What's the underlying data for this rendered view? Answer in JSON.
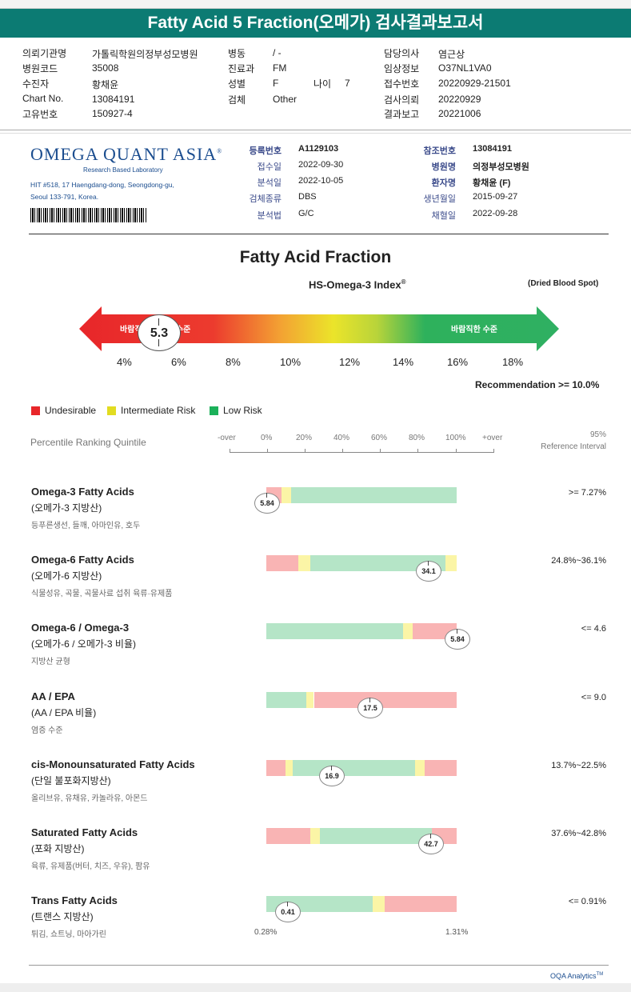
{
  "title": "Fatty Acid 5 Fraction(오메가) 검사결과보고서",
  "header": {
    "col1": [
      {
        "k": "의뢰기관명",
        "v": "가톨릭학원의정부성모병원"
      },
      {
        "k": "병원코드",
        "v": "35008"
      },
      {
        "k": "수진자",
        "v": "황채윤"
      },
      {
        "k": "Chart No.",
        "v": "13084191"
      },
      {
        "k": "고유번호",
        "v": "150927-4"
      }
    ],
    "col2": [
      {
        "k": "병동",
        "v": "/ -"
      },
      {
        "k": "진료과",
        "v": "FM"
      },
      {
        "k": "성별",
        "v": "F"
      },
      {
        "k": "검체",
        "v": "Other"
      }
    ],
    "age_label": "나이",
    "age_value": "7",
    "col3": [
      {
        "k": "담당의사",
        "v": "염근상"
      },
      {
        "k": "임상정보",
        "v": "O37NL1VA0"
      },
      {
        "k": "접수번호",
        "v": "20220929-21501"
      },
      {
        "k": "검사의뢰",
        "v": "20220929"
      },
      {
        "k": "결과보고",
        "v": "20221006"
      }
    ]
  },
  "lab": {
    "logo_main": "OMEGA QUANT ASIA",
    "logo_sub": "Research Based Laboratory",
    "address1": "HIT #518, 17 Haengdang-dong, Seongdong-gu,",
    "address2": "Seoul 133-791, Korea."
  },
  "info_left": [
    {
      "k": "등록번호",
      "v": "A1129103",
      "bold": true
    },
    {
      "k": "접수일",
      "v": "2022-09-30"
    },
    {
      "k": "분석일",
      "v": "2022-10-05"
    },
    {
      "k": "검체종류",
      "v": "DBS"
    },
    {
      "k": "분석법",
      "v": "G/C"
    }
  ],
  "info_right": [
    {
      "k": "참조번호",
      "v": "13084191",
      "bold": true
    },
    {
      "k": "병원명",
      "v": "의정부성모병원",
      "bold": true
    },
    {
      "k": "환자명",
      "v": "황채윤 (F)",
      "bold": true
    },
    {
      "k": "생년월일",
      "v": "2015-09-27"
    },
    {
      "k": "채혈일",
      "v": "2022-09-28"
    }
  ],
  "section_title": "Fatty Acid Fraction",
  "index": {
    "label": "HS-Omega-3 Index",
    "reg": "®",
    "sample": "(Dried Blood Spot)",
    "left_text": "바람직하지 않은 수준",
    "right_text": "바람직한 수준",
    "value": "5.3",
    "ticks": [
      "4%",
      "6%",
      "8%",
      "10%",
      "12%",
      "14%",
      "16%",
      "18%"
    ],
    "recommendation": "Recommendation  >= 10.0%"
  },
  "legend": [
    {
      "label": "Undesirable",
      "color": "#e8262a"
    },
    {
      "label": "Intermediate Risk",
      "color": "#e2dc21"
    },
    {
      "label": "Low Risk",
      "color": "#1bb15a"
    }
  ],
  "percentile": {
    "label": "Percentile Ranking Quintile",
    "ticks": [
      "-over",
      "0%",
      "20%",
      "40%",
      "60%",
      "80%",
      "100%",
      "+over"
    ],
    "ref_title1": "95%",
    "ref_title2": "Reference Interval"
  },
  "colors": {
    "red": "#f9b4b4",
    "yellow": "#fbf5a6",
    "green": "#b5e5c7",
    "teal": "#0c7b73"
  },
  "rows": [
    {
      "title": "Omega-3 Fatty Acids",
      "sub": "(오메가-3 지방산)",
      "food": "등푸른생선, 들깨, 아마인유, 호두",
      "value": "5.84",
      "ref": ">= 7.27%",
      "segs": [
        [
          "red",
          8
        ],
        [
          "yellow",
          5
        ],
        [
          "green",
          87
        ]
      ],
      "pos": 0.0
    },
    {
      "title": "Omega-6 Fatty Acids",
      "sub": "(오메가-6 지방산)",
      "food": "식물성유, 곡물, 곡물사료 섭취 육류·유제품",
      "value": "34.1",
      "ref": "24.8%~36.1%",
      "segs": [
        [
          "red",
          17
        ],
        [
          "yellow",
          6
        ],
        [
          "green",
          71
        ],
        [
          "yellow",
          6
        ]
      ],
      "pos": 0.85
    },
    {
      "title": "Omega-6 / Omega-3",
      "sub": "(오메가-6 / 오메가-3 비율)",
      "food": "지방산 균형",
      "value": "5.84",
      "ref": "<= 4.6",
      "segs": [
        [
          "green",
          72
        ],
        [
          "yellow",
          5
        ],
        [
          "red",
          23
        ]
      ],
      "pos": 1.0
    },
    {
      "title": "AA / EPA",
      "sub": "(AA / EPA 비율)",
      "food": "염증 수준",
      "value": "17.5",
      "ref": "<= 9.0",
      "segs": [
        [
          "green",
          21
        ],
        [
          "yellow",
          4
        ],
        [
          "red",
          75
        ]
      ],
      "pos": 0.54
    },
    {
      "title": "cis-Monounsaturated Fatty Acids",
      "sub": "(단일 불포화지방산)",
      "food": "올리브유, 유채유, 카놀라유, 아몬드",
      "value": "16.9",
      "ref": "13.7%~22.5%",
      "segs": [
        [
          "red",
          10
        ],
        [
          "yellow",
          4
        ],
        [
          "green",
          64
        ],
        [
          "yellow",
          5
        ],
        [
          "red",
          17
        ]
      ],
      "pos": 0.34
    },
    {
      "title": "Saturated Fatty Acids",
      "sub": "(포화 지방산)",
      "food": "육류, 유제품(버터, 치즈, 우유), 팜유",
      "value": "42.7",
      "ref": "37.6%~42.8%",
      "segs": [
        [
          "red",
          23
        ],
        [
          "yellow",
          5
        ],
        [
          "green",
          59
        ],
        [
          "yellow",
          0
        ],
        [
          "red",
          13
        ]
      ],
      "pos": 0.86
    },
    {
      "title": "Trans Fatty Acids",
      "sub": "(트랜스 지방산)",
      "food": "튀김, 쇼트닝, 마아가린",
      "value": "0.41",
      "ref": "<= 0.91%",
      "segs": [
        [
          "green",
          56
        ],
        [
          "yellow",
          6
        ],
        [
          "red",
          38
        ]
      ],
      "pos": 0.11
    }
  ],
  "trans_scale": {
    "min": "0.28%",
    "max": "1.31%"
  },
  "footer": "OQA Analytics",
  "footer_tm": "TM"
}
